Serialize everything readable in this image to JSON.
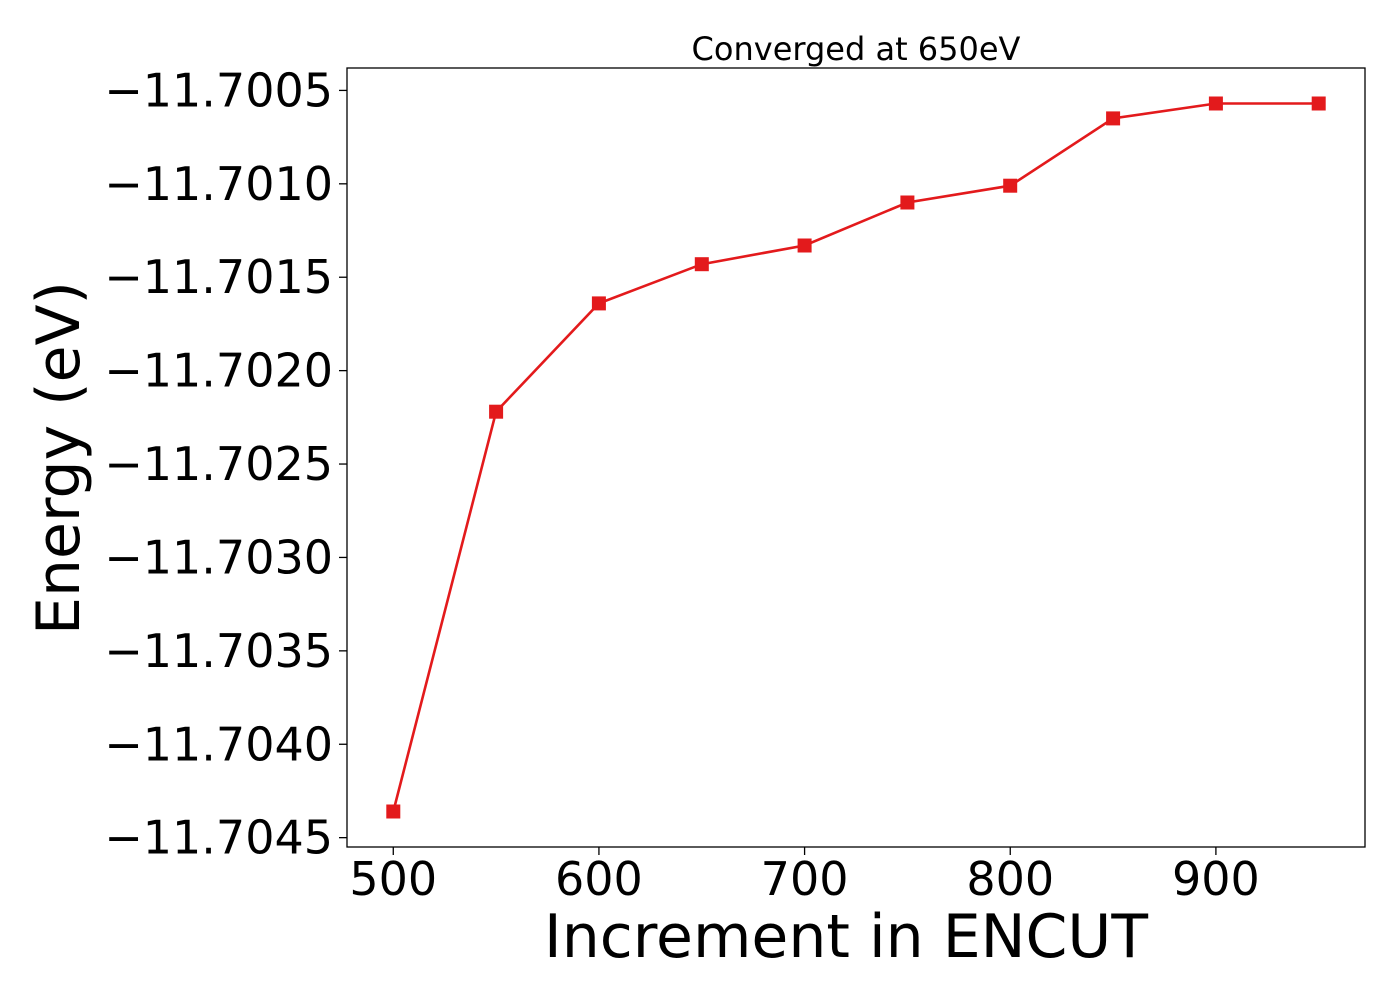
{
  "chart_data": {
    "type": "line",
    "title": "Converged at 650eV",
    "xlabel": "Increment in ENCUT",
    "ylabel": "Energy (eV)",
    "x": [
      500,
      550,
      600,
      650,
      700,
      750,
      800,
      850,
      900,
      950
    ],
    "series": [
      {
        "values": [
          -11.70436,
          -11.70222,
          -11.70164,
          -11.70143,
          -11.70133,
          -11.7011,
          -11.70101,
          -11.70065,
          -11.70057,
          -11.70057
        ]
      }
    ],
    "xlim": [
      477.5,
      972.5
    ],
    "ylim": [
      -11.70455,
      -11.70038
    ],
    "xticks": [
      500,
      600,
      700,
      800,
      900
    ],
    "xtick_labels": [
      "500",
      "600",
      "700",
      "800",
      "900"
    ],
    "yticks": [
      -11.7045,
      -11.704,
      -11.7035,
      -11.703,
      -11.7025,
      -11.702,
      -11.7015,
      -11.701,
      -11.7005
    ],
    "ytick_labels": [
      "−11.7045",
      "−11.7040",
      "−11.7035",
      "−11.7030",
      "−11.7025",
      "−11.7020",
      "−11.7015",
      "−11.7010",
      "−11.7005"
    ],
    "grid": false,
    "legend": "none",
    "marker": "square",
    "color": "#e31a1c"
  }
}
